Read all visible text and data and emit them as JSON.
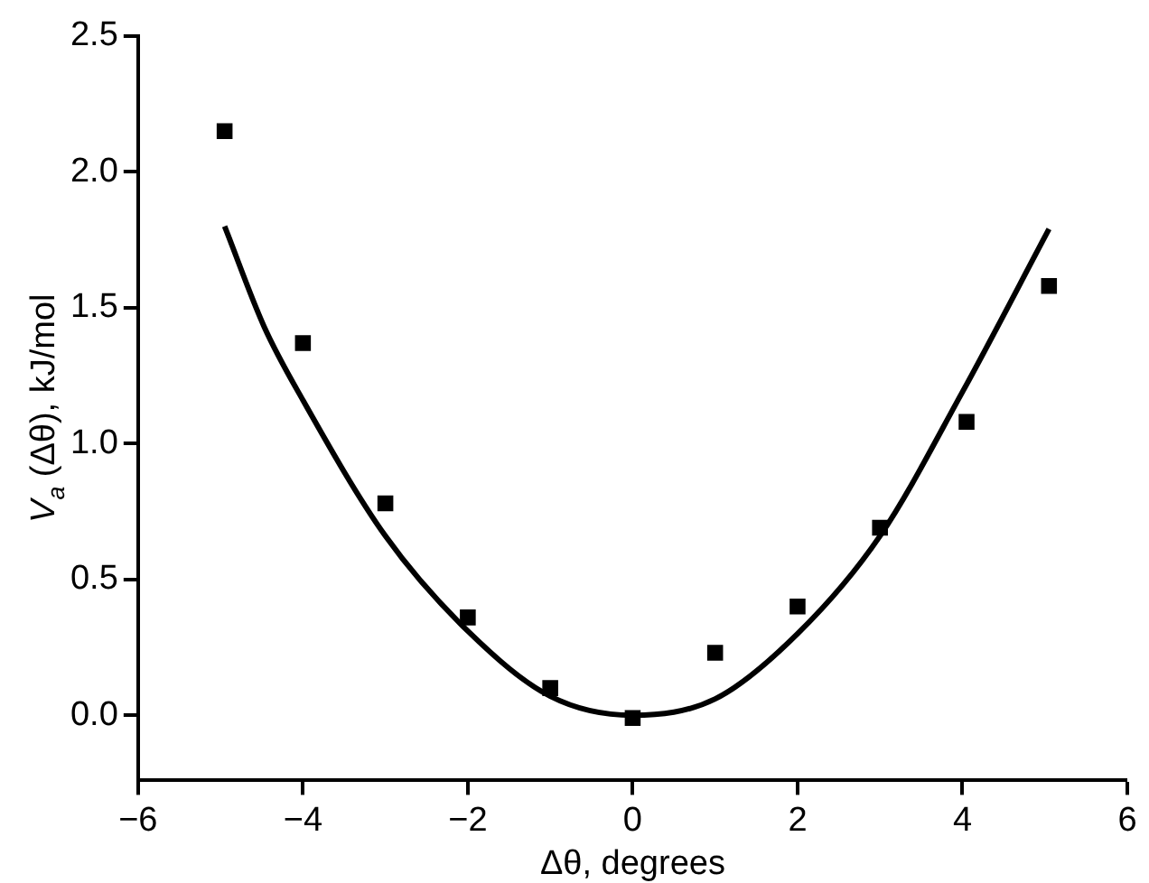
{
  "chart_data": {
    "type": "scatter",
    "xlabel": "Δθ, degrees",
    "ylabel": "V$_{a}$ (Δθ), kJ/mol",
    "xlim": [
      -6,
      6
    ],
    "xticks": [
      {
        "value": -6,
        "label": "−6"
      },
      {
        "value": -4,
        "label": "−4"
      },
      {
        "value": -2,
        "label": "−2"
      },
      0,
      2,
      4,
      6
    ],
    "ylim": [
      -0.24,
      2.5
    ],
    "yticks": [
      {
        "value": 0,
        "label": "0.0"
      },
      0.5,
      {
        "value": 1,
        "label": "1.0"
      },
      1.5,
      {
        "value": 2,
        "label": "2.0"
      },
      2.5
    ],
    "grid": false,
    "legend": false,
    "series": [
      {
        "marker": "square",
        "color": "#000000",
        "x": [
          -4.95,
          -4,
          -3,
          -2,
          -1,
          0,
          1,
          2,
          3,
          4.05,
          5.05
        ],
        "values": [
          2.15,
          1.37,
          0.78,
          0.36,
          0.1,
          -0.01,
          0.23,
          0.4,
          0.69,
          1.08,
          1.58
        ]
      },
      {
        "type": "line",
        "marker": "none",
        "line_style": "solid",
        "color": "#000000",
        "x": [
          -4.95,
          -4.47,
          -4,
          -3,
          -2,
          -1,
          0,
          1,
          2,
          3,
          4,
          5.05
        ],
        "values": [
          1.8,
          1.43,
          1.16,
          0.66,
          0.31,
          0.07,
          0,
          0.06,
          0.3,
          0.66,
          1.19,
          1.79
        ]
      }
    ]
  }
}
